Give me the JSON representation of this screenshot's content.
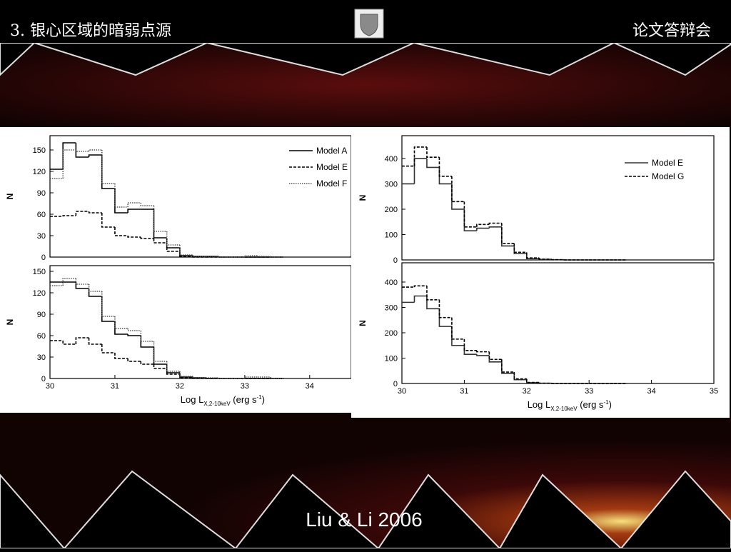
{
  "slide": {
    "title": "3. 银心区域的暗弱点源",
    "header_right": "论文答辩会",
    "caption": "Liu & Li 2006"
  },
  "chart_data": [
    {
      "type": "histogram",
      "y_label": "N",
      "legend": "upper right",
      "bins": [
        30,
        30.2,
        30.4,
        30.6,
        30.8,
        31,
        31.2,
        31.4,
        31.6,
        31.8,
        32,
        32.2,
        32.4,
        32.6,
        32.8,
        33,
        33.2,
        33.4,
        33.6
      ],
      "series": [
        {
          "name": "Model A",
          "color": "#000000",
          "line_style": "solid",
          "values": [
            123,
            160,
            140,
            143,
            96,
            62,
            67,
            67,
            27,
            13,
            2,
            1,
            1,
            0,
            0,
            0,
            0,
            0
          ]
        },
        {
          "name": "Model E",
          "color": "#000000",
          "line_style": "dashed",
          "values": [
            57,
            58,
            64,
            62,
            42,
            30,
            28,
            26,
            20,
            8,
            1,
            0,
            0,
            0,
            0,
            0,
            0,
            0
          ]
        },
        {
          "name": "Model F",
          "color": "#555555",
          "line_style": "dotted",
          "values": [
            110,
            150,
            148,
            150,
            103,
            70,
            76,
            72,
            36,
            17,
            3,
            1,
            1,
            0,
            0,
            2,
            1,
            0
          ]
        }
      ],
      "xlim": [
        30,
        34.64
      ],
      "ylim": [
        0,
        170
      ],
      "yticks": [
        0,
        30,
        60,
        90,
        120,
        150
      ]
    },
    {
      "type": "histogram",
      "y_label": "N",
      "x_label": [
        "Log L",
        "X,2-10keV",
        " (erg s",
        "-1",
        ")"
      ],
      "bins": [
        30,
        30.2,
        30.4,
        30.6,
        30.8,
        31,
        31.2,
        31.4,
        31.6,
        31.8,
        32,
        32.2,
        32.4,
        32.6,
        32.8,
        33,
        33.2,
        33.4,
        33.6
      ],
      "series": [
        {
          "color": "#000000",
          "line_style": "solid",
          "values": [
            135,
            135,
            126,
            115,
            80,
            62,
            60,
            44,
            20,
            8,
            2,
            1,
            0,
            0,
            0,
            0,
            0,
            0
          ]
        },
        {
          "color": "#000000",
          "line_style": "dashed",
          "values": [
            53,
            48,
            57,
            48,
            36,
            28,
            24,
            20,
            14,
            6,
            1,
            0,
            0,
            0,
            0,
            0,
            0,
            0
          ]
        },
        {
          "color": "#555555",
          "line_style": "dotted",
          "values": [
            130,
            140,
            132,
            122,
            87,
            70,
            67,
            52,
            24,
            10,
            3,
            1,
            1,
            0,
            0,
            2,
            2,
            0
          ]
        }
      ],
      "xlim": [
        30,
        34.64
      ],
      "ylim": [
        0,
        158
      ],
      "xticks": [
        30,
        31,
        32,
        33,
        34
      ],
      "yticks": [
        0,
        30,
        60,
        90,
        120,
        150
      ]
    },
    {
      "type": "histogram",
      "y_label": "N",
      "legend": "upper right",
      "bins": [
        30,
        30.2,
        30.4,
        30.6,
        30.8,
        31,
        31.2,
        31.4,
        31.6,
        31.8,
        32,
        32.2,
        32.4,
        32.6,
        32.8,
        33,
        33.2,
        33.4,
        33.6
      ],
      "series": [
        {
          "name": "Model E",
          "color": "#333333",
          "line_style": "solid",
          "values": [
            300,
            400,
            365,
            300,
            200,
            115,
            125,
            130,
            55,
            25,
            5,
            2,
            1,
            0,
            0,
            0,
            0,
            0
          ]
        },
        {
          "name": "Model G",
          "color": "#000000",
          "line_style": "dashed",
          "values": [
            370,
            445,
            405,
            330,
            230,
            130,
            140,
            145,
            65,
            30,
            8,
            3,
            1,
            0,
            0,
            0,
            0,
            0
          ]
        }
      ],
      "xlim": [
        30,
        35
      ],
      "ylim": [
        0,
        490
      ],
      "yticks": [
        0,
        100,
        200,
        300,
        400
      ]
    },
    {
      "type": "histogram",
      "y_label": "N",
      "x_label": [
        "Log L",
        "X,2-10keV",
        " (erg s",
        "-1",
        ")"
      ],
      "bins": [
        30,
        30.2,
        30.4,
        30.6,
        30.8,
        31,
        31.2,
        31.4,
        31.6,
        31.8,
        32,
        32.2,
        32.4,
        32.6,
        32.8,
        33,
        33.2,
        33.4,
        33.6
      ],
      "series": [
        {
          "color": "#333333",
          "line_style": "solid",
          "values": [
            320,
            345,
            295,
            225,
            150,
            115,
            110,
            85,
            40,
            15,
            3,
            1,
            0,
            0,
            0,
            0,
            0,
            0
          ]
        },
        {
          "color": "#000000",
          "line_style": "dashed",
          "values": [
            380,
            385,
            330,
            260,
            175,
            130,
            125,
            95,
            45,
            18,
            4,
            1,
            0,
            0,
            0,
            0,
            0,
            0
          ]
        }
      ],
      "xlim": [
        30,
        35
      ],
      "ylim": [
        0,
        476
      ],
      "xticks": [
        30,
        31,
        32,
        33,
        34,
        35
      ],
      "yticks": [
        0,
        100,
        200,
        300,
        400
      ]
    }
  ]
}
